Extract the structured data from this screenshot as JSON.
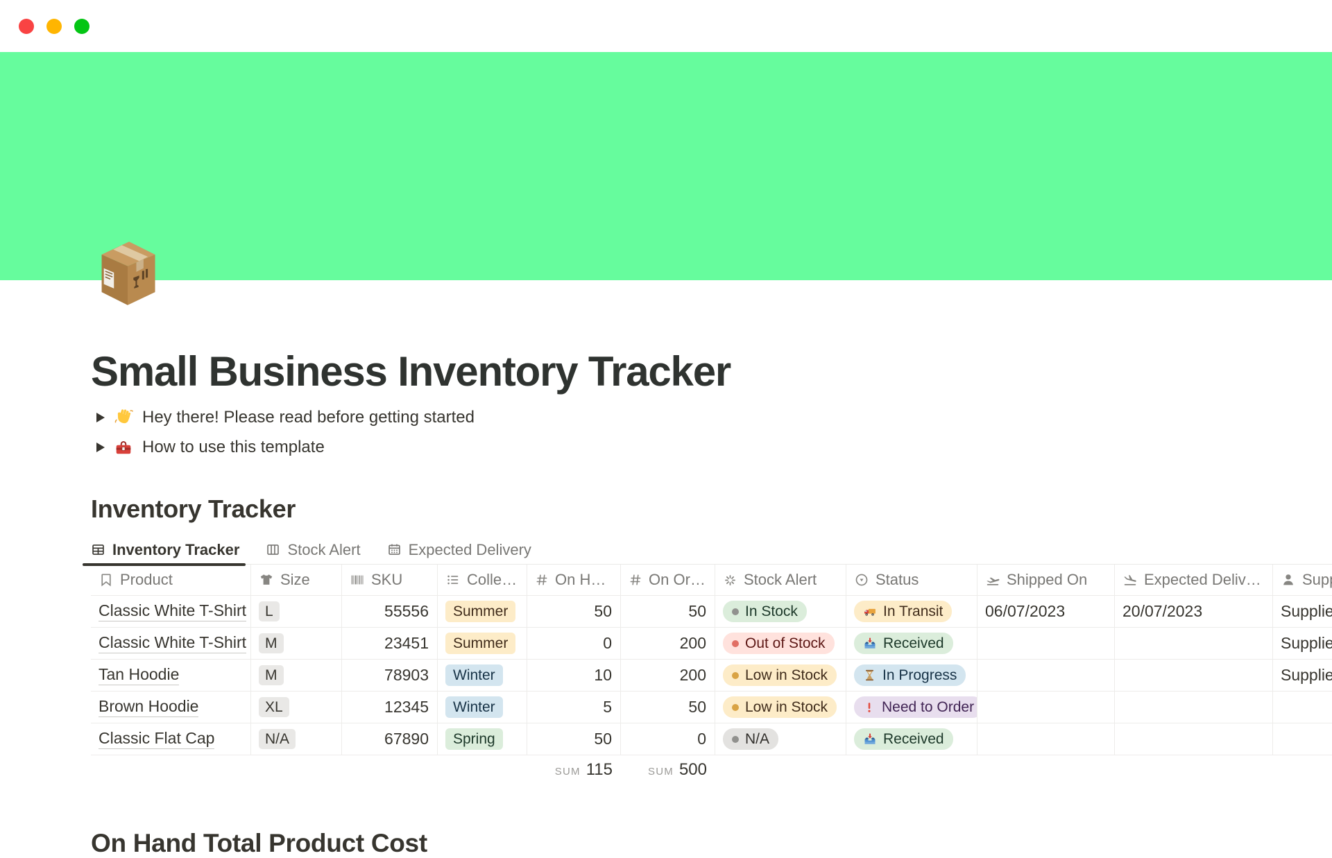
{
  "window": {
    "controls": [
      {
        "name": "close",
        "color": "#F94343"
      },
      {
        "name": "minimize",
        "color": "#FFB501"
      },
      {
        "name": "zoom",
        "color": "#04C514"
      }
    ]
  },
  "cover": {
    "color": "#66FC9D"
  },
  "page": {
    "icon": "package-icon",
    "title": "Small Business Inventory Tracker",
    "toggles": [
      {
        "icon": "wave-icon",
        "text": "Hey there! Please read before getting started"
      },
      {
        "icon": "toolbox-icon",
        "text": "How to use this template"
      }
    ],
    "section_heading": "Inventory Tracker",
    "bottom_heading": "On Hand Total Product Cost"
  },
  "tabs": [
    {
      "label": "Inventory Tracker",
      "icon": "table-view-icon",
      "active": true
    },
    {
      "label": "Stock Alert",
      "icon": "board-view-icon",
      "active": false
    },
    {
      "label": "Expected Delivery",
      "icon": "calendar-view-icon",
      "active": false
    }
  ],
  "table": {
    "columns": [
      {
        "key": "product",
        "label": "Product",
        "icon": "bookmark-icon"
      },
      {
        "key": "size",
        "label": "Size",
        "icon": "tshirt-icon"
      },
      {
        "key": "sku",
        "label": "SKU",
        "icon": "barcode-icon"
      },
      {
        "key": "collection",
        "label": "Collection",
        "icon": "list-icon"
      },
      {
        "key": "on_hand",
        "label": "On Hand",
        "icon": "hash-icon"
      },
      {
        "key": "on_order",
        "label": "On Order",
        "icon": "hash-icon"
      },
      {
        "key": "stock_alert",
        "label": "Stock Alert",
        "icon": "formula-icon"
      },
      {
        "key": "status",
        "label": "Status",
        "icon": "status-icon"
      },
      {
        "key": "shipped_on",
        "label": "Shipped On",
        "icon": "plane-takeoff-icon"
      },
      {
        "key": "expected_delivery",
        "label": "Expected Delivery",
        "icon": "plane-landing-icon"
      },
      {
        "key": "supplier",
        "label": "Supplier",
        "icon": "person-icon"
      }
    ],
    "rows": [
      {
        "product": "Classic White T-Shirt",
        "size": "L",
        "sku": "55556",
        "collection": {
          "label": "Summer",
          "color": "yellow"
        },
        "on_hand": "50",
        "on_order": "50",
        "stock_alert": {
          "label": "In Stock",
          "color": "green",
          "dot": "gray"
        },
        "status": {
          "label": "In Transit",
          "color": "yellow",
          "icon": "truck-icon"
        },
        "shipped_on": "06/07/2023",
        "expected_delivery": "20/07/2023",
        "supplier": "Supplier"
      },
      {
        "product": "Classic White T-Shirt",
        "size": "M",
        "sku": "23451",
        "collection": {
          "label": "Summer",
          "color": "yellow"
        },
        "on_hand": "0",
        "on_order": "200",
        "stock_alert": {
          "label": "Out of Stock",
          "color": "red",
          "dot": "red"
        },
        "status": {
          "label": "Received",
          "color": "green",
          "icon": "inbox-icon"
        },
        "shipped_on": "",
        "expected_delivery": "",
        "supplier": "Supplier"
      },
      {
        "product": "Tan Hoodie",
        "size": "M",
        "sku": "78903",
        "collection": {
          "label": "Winter",
          "color": "blue"
        },
        "on_hand": "10",
        "on_order": "200",
        "stock_alert": {
          "label": "Low in Stock",
          "color": "yellow",
          "dot": "orange"
        },
        "status": {
          "label": "In Progress",
          "color": "blue",
          "icon": "hourglass-icon"
        },
        "shipped_on": "",
        "expected_delivery": "",
        "supplier": "Supplier"
      },
      {
        "product": "Brown Hoodie",
        "size": "XL",
        "sku": "12345",
        "collection": {
          "label": "Winter",
          "color": "blue"
        },
        "on_hand": "5",
        "on_order": "50",
        "stock_alert": {
          "label": "Low in Stock",
          "color": "yellow",
          "dot": "orange"
        },
        "status": {
          "label": "Need to Order",
          "color": "purple",
          "icon": "exclamation-icon"
        },
        "shipped_on": "",
        "expected_delivery": "",
        "supplier": ""
      },
      {
        "product": "Classic Flat Cap",
        "size": "N/A",
        "sku": "67890",
        "collection": {
          "label": "Spring",
          "color": "green"
        },
        "on_hand": "50",
        "on_order": "0",
        "stock_alert": {
          "label": "N/A",
          "color": "gray",
          "dot": "gray"
        },
        "status": {
          "label": "Received",
          "color": "green",
          "icon": "inbox-icon"
        },
        "shipped_on": "",
        "expected_delivery": "",
        "supplier": ""
      }
    ],
    "sums": [
      {
        "column": "on_hand",
        "label": "SUM",
        "value": "115"
      },
      {
        "column": "on_order",
        "label": "SUM",
        "value": "500"
      }
    ]
  },
  "colors": {
    "tag_yellow_bg": "#FDECC8",
    "tag_yellow_text": "#402C1B",
    "tag_blue_bg": "#D3E5EF",
    "tag_blue_text": "#183347",
    "tag_green_bg": "#DBEDDB",
    "tag_green_text": "#1C3829",
    "tag_red_bg": "#FFE2DD",
    "tag_red_text": "#5D1715",
    "tag_gray_bg": "#E3E2E0",
    "tag_gray_text": "#32302C",
    "tag_purple_bg": "#E8DEEE",
    "tag_purple_text": "#412454",
    "dot_gray": "#91918E",
    "dot_red": "#E16F64",
    "dot_orange": "#D9A344"
  }
}
